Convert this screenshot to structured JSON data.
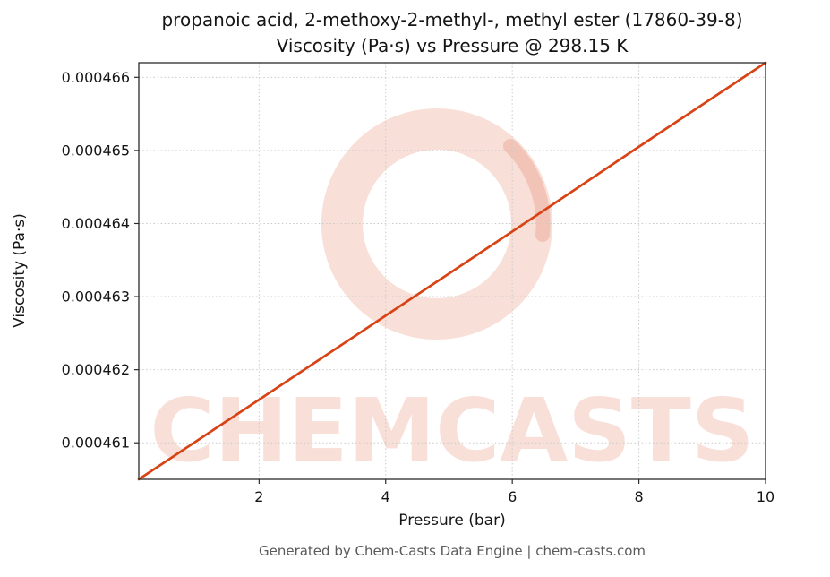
{
  "title": {
    "line1": "propanoic acid, 2-methoxy-2-methyl-, methyl ester (17860-39-8)",
    "line2": "Viscosity (Pa·s) vs Pressure @ 298.15 K"
  },
  "footer": "Generated by Chem-Casts Data Engine | chem-casts.com",
  "watermark": {
    "text": "CHEMCASTS"
  },
  "colors": {
    "line": "#d84315",
    "watermark": "rgba(216,67,21,0.17)",
    "grid": "#c9c9c9",
    "axis": "#2b2b2b",
    "tick_text": "#151515",
    "footer_text": "#5a5a5a"
  },
  "chart_data": {
    "type": "line",
    "title": "propanoic acid, 2-methoxy-2-methyl-, methyl ester (17860-39-8) — Viscosity (Pa·s) vs Pressure @ 298.15 K",
    "xlabel": "Pressure (bar)",
    "ylabel": "Viscosity (Pa·s)",
    "xlim": [
      0.1,
      10
    ],
    "ylim": [
      0.0004605,
      0.0004662
    ],
    "x_ticks": [
      2,
      4,
      6,
      8,
      10
    ],
    "x_tick_labels": [
      "2",
      "4",
      "6",
      "8",
      "10"
    ],
    "y_ticks": [
      0.000461,
      0.000462,
      0.000463,
      0.000464,
      0.000465,
      0.000466
    ],
    "y_tick_labels": [
      "0.000461",
      "0.000462",
      "0.000463",
      "0.000464",
      "0.000465",
      "0.000466"
    ],
    "grid": true,
    "legend": false,
    "series": [
      {
        "name": "viscosity-vs-pressure",
        "x": [
          0.1,
          2,
          4,
          6,
          8,
          10
        ],
        "y": [
          0.0004605,
          0.00046159,
          0.00046274,
          0.00046389,
          0.00046505,
          0.0004662
        ]
      }
    ]
  }
}
